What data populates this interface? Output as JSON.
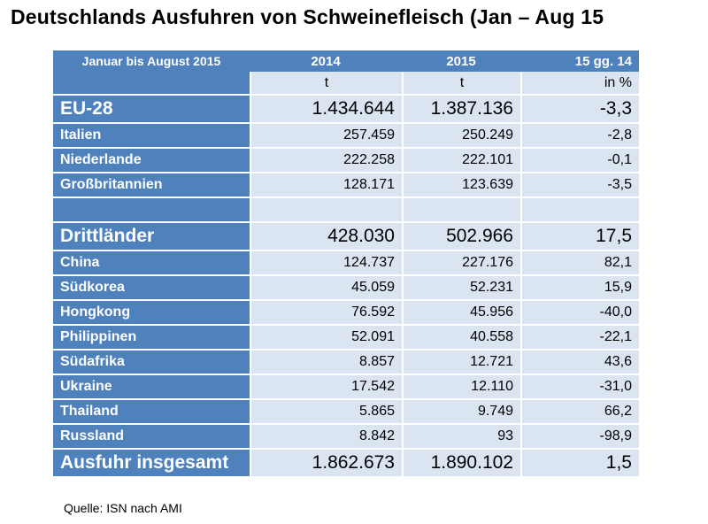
{
  "title": "Deutschlands Ausfuhren von Schweinefleisch (Jan – Aug 15",
  "source": "Quelle: ISN nach AMI",
  "chart_data": {
    "type": "table",
    "columns": [
      "Januar bis August 2015",
      "2014",
      "2015",
      "15 gg. 14"
    ],
    "units": [
      "",
      "t",
      "t",
      "in %"
    ],
    "rows": [
      {
        "name": "EU-28",
        "v2014": "1.434.644",
        "v2015": "1.387.136",
        "change": "-3,3",
        "major": true
      },
      {
        "name": "Italien",
        "v2014": "257.459",
        "v2015": "250.249",
        "change": "-2,8"
      },
      {
        "name": "Niederlande",
        "v2014": "222.258",
        "v2015": "222.101",
        "change": "-0,1"
      },
      {
        "name": "Großbritannien",
        "v2014": "128.171",
        "v2015": "123.639",
        "change": "-3,5"
      },
      {
        "name": "",
        "v2014": "",
        "v2015": "",
        "change": "",
        "blank": true
      },
      {
        "name": "Drittländer",
        "v2014": "428.030",
        "v2015": "502.966",
        "change": "17,5",
        "major": true
      },
      {
        "name": "China",
        "v2014": "124.737",
        "v2015": "227.176",
        "change": "82,1"
      },
      {
        "name": "Südkorea",
        "v2014": "45.059",
        "v2015": "52.231",
        "change": "15,9"
      },
      {
        "name": "Hongkong",
        "v2014": "76.592",
        "v2015": "45.956",
        "change": "-40,0"
      },
      {
        "name": "Philippinen",
        "v2014": "52.091",
        "v2015": "40.558",
        "change": "-22,1"
      },
      {
        "name": "Südafrika",
        "v2014": "8.857",
        "v2015": "12.721",
        "change": "43,6"
      },
      {
        "name": "Ukraine",
        "v2014": "17.542",
        "v2015": "12.110",
        "change": "-31,0"
      },
      {
        "name": "Thailand",
        "v2014": "5.865",
        "v2015": "9.749",
        "change": "66,2"
      },
      {
        "name": "Russland",
        "v2014": "8.842",
        "v2015": "93",
        "change": "-98,9"
      },
      {
        "name": "Ausfuhr insgesamt",
        "v2014": "1.862.673",
        "v2015": "1.890.102",
        "change": "1,5",
        "major": true
      }
    ],
    "colors": {
      "header": "#4f81bd",
      "cell": "#dbe5f1"
    }
  }
}
